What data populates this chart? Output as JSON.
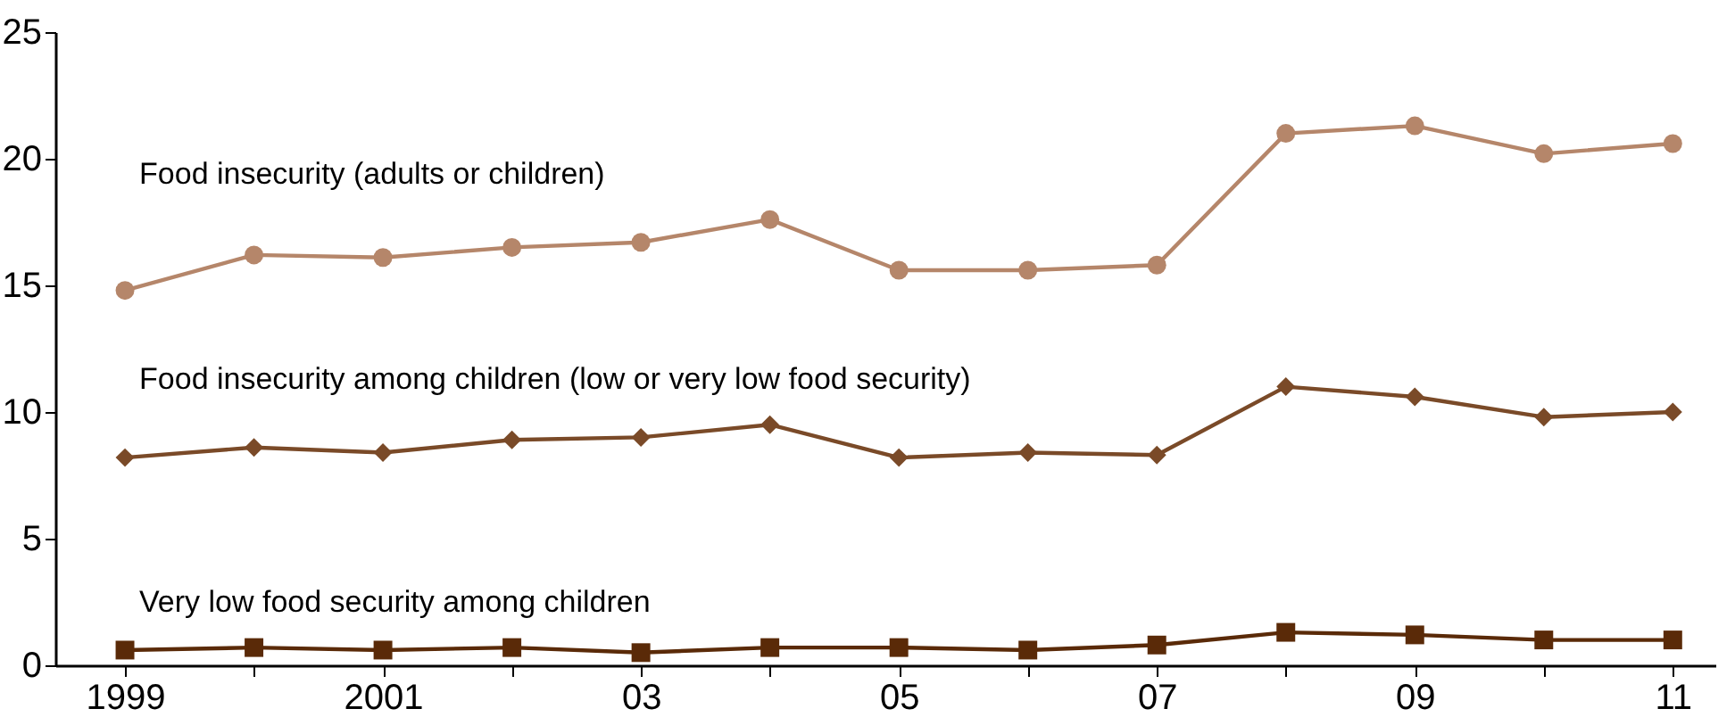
{
  "chart_data": {
    "type": "line",
    "x": [
      1999,
      2000,
      2001,
      2002,
      2003,
      2004,
      2005,
      2006,
      2007,
      2008,
      2009,
      2010,
      2011
    ],
    "xlim": [
      1998.46,
      2011.33
    ],
    "xticks": [
      1999,
      {
        "value": 2000,
        "label": null
      },
      2001,
      {
        "value": 2002,
        "label": null
      },
      {
        "value": 2003,
        "label": "03"
      },
      {
        "value": 2004,
        "label": null
      },
      {
        "value": 2005,
        "label": "05"
      },
      {
        "value": 2006,
        "label": null
      },
      {
        "value": 2007,
        "label": "07"
      },
      {
        "value": 2008,
        "label": null
      },
      {
        "value": 2009,
        "label": "09"
      },
      {
        "value": 2010,
        "label": null
      },
      {
        "value": 2011,
        "label": "11"
      }
    ],
    "ylim": [
      0,
      25
    ],
    "yticks": [
      0,
      5,
      10,
      15,
      20,
      25
    ],
    "grid": false,
    "line_style": "solid",
    "series": [
      {
        "name": "Food insecurity (adults or children)",
        "color": "#b5866a",
        "marker": "circle",
        "values": [
          14.8,
          16.2,
          16.1,
          16.5,
          16.7,
          17.6,
          15.6,
          15.6,
          15.8,
          21.0,
          21.3,
          20.2,
          20.6
        ]
      },
      {
        "name": "Food insecurity among children (low or very low food security)",
        "color": "#7a4a28",
        "marker": "diamond",
        "values": [
          8.2,
          8.6,
          8.4,
          8.9,
          9.0,
          9.5,
          8.2,
          8.4,
          8.3,
          11.0,
          10.6,
          9.8,
          10.0
        ]
      },
      {
        "name": "Very low food security among children",
        "color": "#5a2a08",
        "marker": "square",
        "values": [
          0.6,
          0.7,
          0.6,
          0.7,
          0.5,
          0.7,
          0.7,
          0.6,
          0.8,
          1.3,
          1.2,
          1.0,
          1.0
        ]
      }
    ]
  }
}
